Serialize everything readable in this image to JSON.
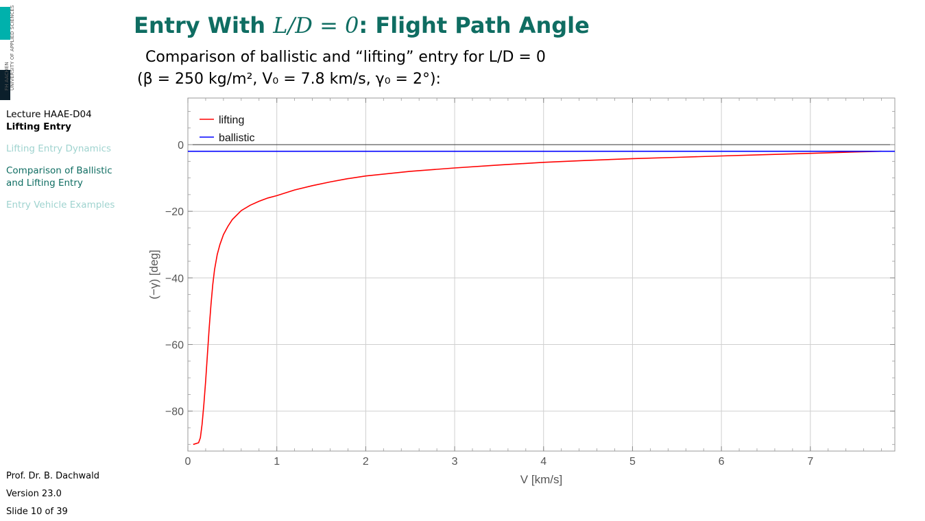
{
  "logo": {
    "line1": "FH AACHEN",
    "line2": "UNIVERSITY OF APPLIED SCIENCES"
  },
  "sidebar": {
    "course": "Lecture HAAE-D04",
    "title": "Lifting Entry",
    "items": [
      {
        "label": "Lifting Entry Dynamics",
        "active": false
      },
      {
        "label": "Comparison of Ballistic and Lifting Entry",
        "active": true
      },
      {
        "label": "Entry Vehicle Examples",
        "active": false
      }
    ]
  },
  "footer": {
    "author": "Prof. Dr. B. Dachwald",
    "version": "Version 23.0",
    "slide": "Slide 10 of 39"
  },
  "slide": {
    "title_prefix": "Entry With ",
    "title_math": "L/D = 0",
    "title_suffix": ": Flight Path Angle",
    "subtitle_line1": "Comparison of ballistic and “lifting” entry for L/D = 0",
    "subtitle_line2": "(β = 250 kg/m², V₀ = 7.8 km/s, γ₀ = 2°):"
  },
  "chart_data": {
    "type": "line",
    "xlabel": "V [km/s]",
    "ylabel": "(−γ) [deg]",
    "xlim": [
      0,
      7.95
    ],
    "ylim": [
      -92,
      14
    ],
    "xticks": [
      0,
      1,
      2,
      3,
      4,
      5,
      6,
      7
    ],
    "yticks": [
      0,
      -20,
      -40,
      -60,
      -80
    ],
    "xtick_labels": [
      "0",
      "1",
      "2",
      "3",
      "4",
      "5",
      "6",
      "7"
    ],
    "ytick_labels": [
      "0",
      "−20",
      "−40",
      "−60",
      "−80"
    ],
    "grid": true,
    "legend_position": "top-left",
    "series": [
      {
        "name": "lifting",
        "color": "#ff0000",
        "x": [
          0.06,
          0.12,
          0.14,
          0.16,
          0.18,
          0.2,
          0.22,
          0.24,
          0.26,
          0.28,
          0.3,
          0.33,
          0.36,
          0.4,
          0.45,
          0.5,
          0.6,
          0.7,
          0.8,
          0.9,
          1.0,
          1.2,
          1.4,
          1.6,
          1.8,
          2.0,
          2.5,
          3.0,
          3.5,
          4.0,
          4.5,
          5.0,
          5.5,
          6.0,
          6.5,
          7.0,
          7.5,
          7.8
        ],
        "y": [
          -90.0,
          -89.5,
          -88.0,
          -84.0,
          -78.0,
          -71.0,
          -63.0,
          -55.0,
          -48.0,
          -42.0,
          -37.5,
          -33.0,
          -30.0,
          -27.0,
          -24.5,
          -22.5,
          -19.8,
          -18.2,
          -17.0,
          -16.0,
          -15.3,
          -13.6,
          -12.3,
          -11.2,
          -10.2,
          -9.4,
          -8.0,
          -7.0,
          -6.1,
          -5.3,
          -4.7,
          -4.2,
          -3.8,
          -3.4,
          -3.0,
          -2.6,
          -2.2,
          -2.0
        ]
      },
      {
        "name": "ballistic",
        "color": "#0000ff",
        "x": [
          0.0,
          7.95
        ],
        "y": [
          -2.0,
          -2.0
        ]
      }
    ]
  }
}
